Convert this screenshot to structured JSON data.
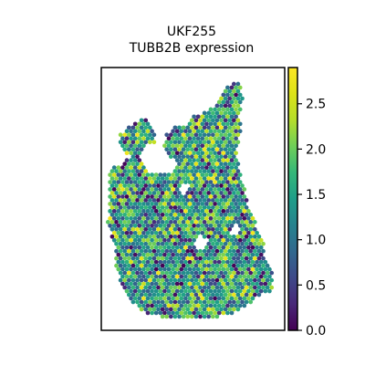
{
  "title_line1": "UKF255",
  "title_line2": "TUBB2B expression",
  "chart_data": {
    "type": "scatter",
    "subtype": "spatial-hex-spot-map",
    "title": "UKF255\nTUBB2B expression",
    "xlabel": "",
    "ylabel": "",
    "axes_ticks_visible": false,
    "colormap": "viridis",
    "colorbar": {
      "range": [
        0.0,
        2.9
      ],
      "ticks": [
        0.0,
        0.5,
        1.0,
        1.5,
        2.0,
        2.5
      ],
      "tick_labels": [
        "0.0",
        "0.5",
        "1.0",
        "1.5",
        "2.0",
        "2.5"
      ]
    },
    "value_mean_approx": 1.3,
    "value_range_observed": [
      0.0,
      2.8
    ]
  }
}
